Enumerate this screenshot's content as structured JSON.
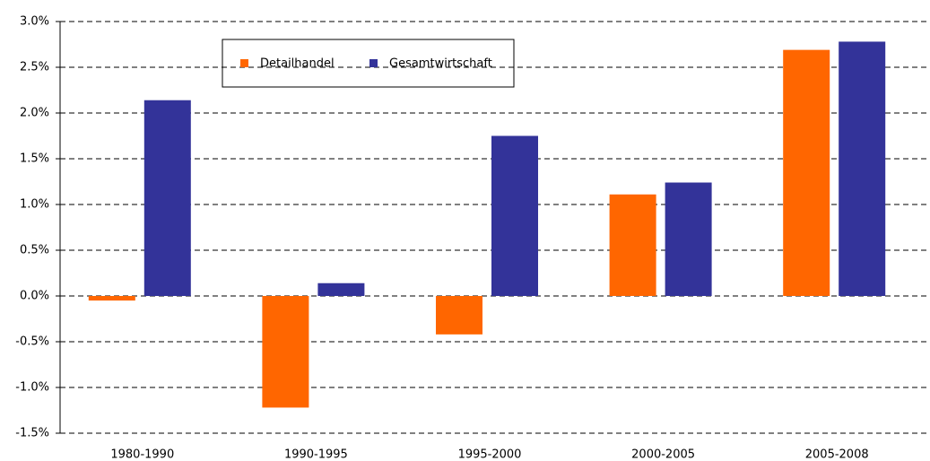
{
  "chart_data": {
    "type": "bar",
    "categories": [
      "1980-1990",
      "1990-1995",
      "1995-2000",
      "2000-2005",
      "2005-2008"
    ],
    "series": [
      {
        "name": "Detailhandel",
        "color": "#ff6600",
        "values": [
          -0.05,
          -1.22,
          -0.42,
          1.11,
          2.69
        ]
      },
      {
        "name": "Gesamtwirtschaft",
        "color": "#333399",
        "values": [
          2.14,
          0.14,
          1.75,
          1.24,
          2.78
        ]
      }
    ],
    "ylim": [
      -1.5,
      3.0
    ],
    "yticks": [
      {
        "value": -1.5,
        "label": "-1.5%"
      },
      {
        "value": -1.0,
        "label": "-1.0%"
      },
      {
        "value": -0.5,
        "label": "-0.5%"
      },
      {
        "value": 0,
        "label": "0.0%"
      },
      {
        "value": 0.5,
        "label": "0.5%"
      },
      {
        "value": 1.0,
        "label": "1.0%"
      },
      {
        "value": 1.5,
        "label": "1.5%"
      },
      {
        "value": 2.0,
        "label": "2.0%"
      },
      {
        "value": 2.5,
        "label": "2.5%"
      },
      {
        "value": 3.0,
        "label": "3.0%"
      }
    ],
    "grid": true,
    "legend": "top-left"
  }
}
